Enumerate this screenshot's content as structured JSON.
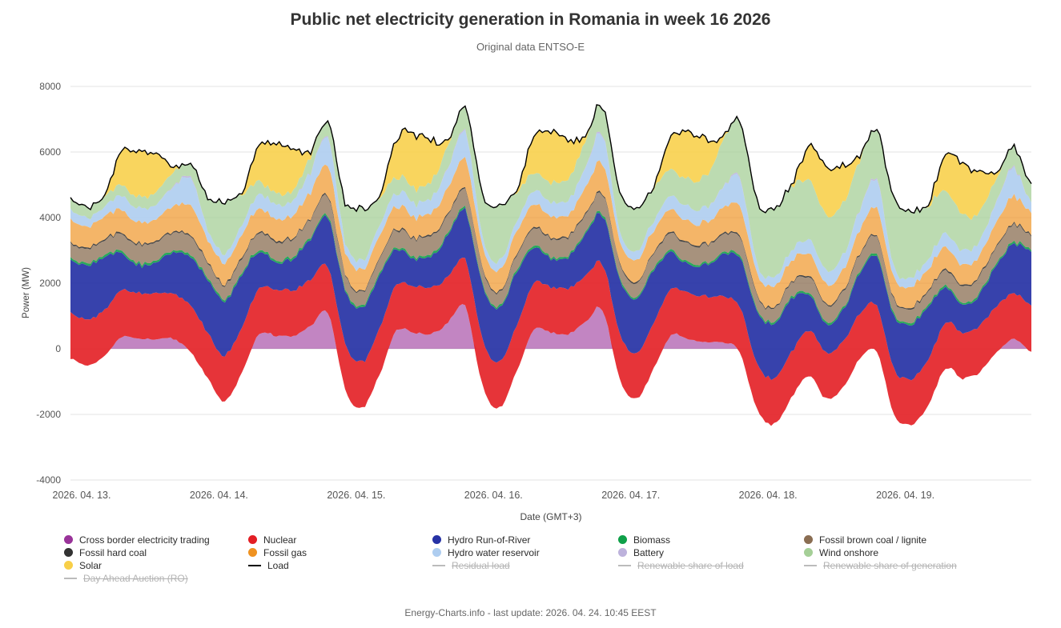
{
  "header": {
    "title": "Public net electricity generation in Romania in week 16 2026",
    "subtitle": "Original data ENTSO-E"
  },
  "footer": {
    "text": "Energy-Charts.info - last update: 2026. 04. 24. 10:45 EEST"
  },
  "chart_data": {
    "type": "area",
    "stacked": true,
    "title": "Public net electricity generation in Romania in week 16 2026",
    "xlabel": "Date (GMT+3)",
    "ylabel": "Power (MW)",
    "ylim": [
      -4000,
      8000
    ],
    "ytick_step": 2000,
    "grid": "horizontal",
    "x_hours_total": 168,
    "x_step_hours": 3,
    "x_tick_labels": [
      "2026. 04. 13.",
      "2026. 04. 14.",
      "2026. 04. 15.",
      "2026. 04. 16.",
      "2026. 04. 17.",
      "2026. 04. 18.",
      "2026. 04. 19."
    ],
    "load_line": {
      "name": "Load",
      "color": "#000000"
    },
    "series": [
      {
        "name": "Cross border electricity trading",
        "slug": "cross-border-electricity-trading",
        "role": "trading",
        "color": "#993399",
        "opacity": 0.6,
        "values": [
          -300,
          -500,
          -200,
          350,
          300,
          300,
          300,
          -100,
          -900,
          -1600,
          -700,
          450,
          400,
          400,
          700,
          1100,
          -1200,
          -1800,
          -800,
          550,
          500,
          450,
          800,
          1300,
          -1100,
          -1800,
          -700,
          550,
          500,
          450,
          800,
          1200,
          -900,
          -1500,
          -600,
          400,
          300,
          200,
          200,
          -100,
          -1800,
          -2300,
          -1500,
          -800,
          -1500,
          -1200,
          -300,
          -100,
          -2000,
          -2300,
          -1700,
          -600,
          -900,
          -700,
          -100,
          300,
          -100
        ]
      },
      {
        "name": "Nuclear",
        "slug": "nuclear",
        "role": "generation",
        "color": "#e31e24",
        "opacity": 0.9,
        "values": [
          1400,
          1400,
          1400,
          1400,
          1400,
          1400,
          1400,
          1400,
          1400,
          1400,
          1400,
          1400,
          1400,
          1400,
          1400,
          1400,
          1400,
          1400,
          1400,
          1400,
          1400,
          1400,
          1400,
          1400,
          1400,
          1400,
          1400,
          1400,
          1400,
          1400,
          1400,
          1400,
          1400,
          1400,
          1400,
          1400,
          1400,
          1400,
          1400,
          1400,
          1400,
          1400,
          1400,
          1400,
          1400,
          1400,
          1400,
          1400,
          1400,
          1400,
          1400,
          1400,
          1400,
          1400,
          1400,
          1400,
          1400
        ]
      },
      {
        "name": "Hydro Run-of-River",
        "slug": "hydro-run-of-river",
        "role": "generation",
        "color": "#2632a5",
        "opacity": 0.92,
        "values": [
          1620,
          1660,
          1620,
          1100,
          850,
          950,
          1250,
          1500,
          1620,
          1660,
          1620,
          1100,
          850,
          950,
          1250,
          1500,
          1620,
          1660,
          1620,
          1100,
          850,
          950,
          1250,
          1500,
          1620,
          1660,
          1620,
          1100,
          850,
          950,
          1250,
          1500,
          1620,
          1660,
          1620,
          1100,
          850,
          950,
          1250,
          1500,
          1620,
          1660,
          1620,
          1100,
          850,
          950,
          1250,
          1500,
          1620,
          1660,
          1620,
          1100,
          850,
          950,
          1250,
          1500,
          1620
        ]
      },
      {
        "name": "Biomass",
        "slug": "biomass",
        "role": "generation",
        "color": "#0fa049",
        "opacity": 0.9,
        "values": [
          60,
          60,
          60,
          60,
          60,
          60,
          60,
          60,
          60,
          60,
          60,
          60,
          60,
          60,
          60,
          60,
          60,
          60,
          60,
          60,
          60,
          60,
          60,
          60,
          60,
          60,
          60,
          60,
          60,
          60,
          60,
          60,
          60,
          60,
          60,
          60,
          60,
          60,
          60,
          60,
          60,
          60,
          60,
          60,
          60,
          60,
          60,
          60,
          60,
          60,
          60,
          60,
          60,
          60,
          60,
          60,
          60
        ]
      },
      {
        "name": "Fossil brown coal / lignite",
        "slug": "fossil-brown-coal-lignite",
        "role": "generation",
        "color": "#8a6d52",
        "opacity": 0.75,
        "values": [
          430,
          420,
          450,
          520,
          560,
          550,
          540,
          560,
          430,
          420,
          450,
          520,
          560,
          550,
          540,
          560,
          430,
          420,
          450,
          520,
          560,
          550,
          540,
          560,
          430,
          420,
          450,
          520,
          560,
          550,
          540,
          560,
          430,
          420,
          450,
          520,
          560,
          550,
          540,
          560,
          420,
          410,
          430,
          470,
          500,
          490,
          500,
          520,
          420,
          410,
          430,
          470,
          500,
          490,
          500,
          520,
          430
        ]
      },
      {
        "name": "Fossil hard coal",
        "slug": "fossil-hard-coal",
        "role": "generation",
        "color": "#333333",
        "opacity": 0.9,
        "values": [
          40,
          40,
          40,
          40,
          40,
          40,
          40,
          40,
          40,
          40,
          40,
          40,
          40,
          40,
          40,
          40,
          40,
          40,
          40,
          40,
          40,
          40,
          40,
          40,
          40,
          40,
          40,
          40,
          40,
          40,
          40,
          40,
          40,
          40,
          40,
          40,
          40,
          40,
          40,
          40,
          40,
          40,
          40,
          40,
          40,
          40,
          40,
          40,
          40,
          40,
          40,
          40,
          40,
          40,
          40,
          40,
          40
        ]
      },
      {
        "name": "Fossil gas",
        "slug": "fossil-gas",
        "role": "generation",
        "color": "#ef9221",
        "opacity": 0.68,
        "values": [
          670,
          650,
          680,
          700,
          640,
          660,
          780,
          900,
          670,
          650,
          680,
          700,
          640,
          660,
          780,
          900,
          670,
          650,
          680,
          700,
          640,
          660,
          780,
          900,
          670,
          650,
          680,
          700,
          640,
          660,
          780,
          900,
          670,
          650,
          680,
          700,
          640,
          660,
          780,
          900,
          650,
          630,
          650,
          660,
          600,
          620,
          720,
          840,
          650,
          630,
          650,
          660,
          600,
          620,
          720,
          840,
          670
        ]
      },
      {
        "name": "Hydro water reservoir",
        "slug": "hydro-water-reservoir",
        "role": "generation",
        "color": "#aecdf0",
        "opacity": 0.9,
        "values": [
          300,
          280,
          300,
          420,
          430,
          450,
          600,
          850,
          300,
          280,
          300,
          420,
          430,
          450,
          600,
          850,
          300,
          280,
          300,
          420,
          430,
          450,
          600,
          850,
          300,
          280,
          300,
          420,
          430,
          450,
          600,
          850,
          300,
          280,
          300,
          420,
          430,
          450,
          600,
          850,
          300,
          280,
          300,
          420,
          430,
          450,
          600,
          850,
          300,
          280,
          300,
          420,
          430,
          450,
          600,
          850,
          300
        ]
      },
      {
        "name": "Battery",
        "slug": "battery",
        "role": "generation",
        "color": "#bdb2dc",
        "opacity": 0.9,
        "values": [
          0,
          0,
          0,
          0,
          0,
          0,
          20,
          40,
          0,
          0,
          0,
          0,
          0,
          0,
          20,
          40,
          0,
          0,
          0,
          0,
          0,
          0,
          20,
          40,
          0,
          0,
          0,
          0,
          0,
          0,
          20,
          40,
          0,
          0,
          0,
          0,
          0,
          0,
          20,
          40,
          0,
          0,
          0,
          0,
          0,
          0,
          20,
          40,
          0,
          0,
          0,
          0,
          0,
          0,
          20,
          40,
          0
        ]
      },
      {
        "name": "Wind onshore",
        "slug": "wind-onshore",
        "role": "generation",
        "color": "#a5cf97",
        "opacity": 0.75,
        "values": [
          350,
          320,
          300,
          320,
          350,
          380,
          420,
          380,
          1000,
          1600,
          900,
          400,
          350,
          300,
          450,
          450,
          1200,
          1600,
          800,
          500,
          450,
          500,
          650,
          700,
          1300,
          1700,
          900,
          550,
          600,
          650,
          800,
          800,
          1200,
          1300,
          1000,
          800,
          850,
          950,
          1400,
          1700,
          1900,
          2100,
          1950,
          1800,
          1700,
          1600,
          1500,
          1500,
          2100,
          2000,
          1600,
          1300,
          1100,
          900,
          700,
          600,
          550
        ]
      },
      {
        "name": "Solar",
        "slug": "solar",
        "role": "generation",
        "color": "#f8cf48",
        "opacity": 0.88,
        "values": [
          0,
          0,
          50,
          1050,
          1400,
          1150,
          150,
          0,
          0,
          0,
          60,
          1100,
          1500,
          1250,
          160,
          0,
          0,
          0,
          60,
          1150,
          1650,
          1280,
          170,
          0,
          0,
          0,
          60,
          1100,
          1550,
          1200,
          160,
          0,
          0,
          0,
          50,
          1000,
          1450,
          1150,
          150,
          0,
          0,
          0,
          50,
          1000,
          1450,
          1150,
          150,
          0,
          0,
          0,
          60,
          1080,
          1550,
          1200,
          160,
          0,
          0
        ]
      }
    ]
  },
  "legend": {
    "items": [
      {
        "label": "Cross border electricity trading",
        "slug": "cross-border-electricity-trading",
        "color": "#993399",
        "marker": "dot",
        "enabled": true
      },
      {
        "label": "Nuclear",
        "slug": "nuclear",
        "color": "#e31e24",
        "marker": "dot",
        "enabled": true
      },
      {
        "label": "Hydro Run-of-River",
        "slug": "hydro-run-of-river",
        "color": "#2632a5",
        "marker": "dot",
        "enabled": true
      },
      {
        "label": "Biomass",
        "slug": "biomass",
        "color": "#0fa049",
        "marker": "dot",
        "enabled": true
      },
      {
        "label": "Fossil brown coal / lignite",
        "slug": "fossil-brown-coal-lignite",
        "color": "#8a6d52",
        "marker": "dot",
        "enabled": true
      },
      {
        "label": "Fossil hard coal",
        "slug": "fossil-hard-coal",
        "color": "#333333",
        "marker": "dot",
        "enabled": true
      },
      {
        "label": "Fossil gas",
        "slug": "fossil-gas",
        "color": "#ef9221",
        "marker": "dot",
        "enabled": true
      },
      {
        "label": "Hydro water reservoir",
        "slug": "hydro-water-reservoir",
        "color": "#aecdf0",
        "marker": "dot",
        "enabled": true
      },
      {
        "label": "Battery",
        "slug": "battery",
        "color": "#bdb2dc",
        "marker": "dot",
        "enabled": true
      },
      {
        "label": "Wind onshore",
        "slug": "wind-onshore",
        "color": "#a5cf97",
        "marker": "dot",
        "enabled": true
      },
      {
        "label": "Solar",
        "slug": "solar",
        "color": "#f8cf48",
        "marker": "dot",
        "enabled": true
      },
      {
        "label": "Load",
        "slug": "load",
        "color": "#000000",
        "marker": "line",
        "enabled": true
      },
      {
        "label": "Residual load",
        "slug": "residual-load",
        "color": "#bbbbbb",
        "marker": "line",
        "enabled": false
      },
      {
        "label": "Renewable share of load",
        "slug": "renewable-share-of-load",
        "color": "#bbbbbb",
        "marker": "line",
        "enabled": false
      },
      {
        "label": "Renewable share of generation",
        "slug": "renewable-share-of-generation",
        "color": "#bbbbbb",
        "marker": "line",
        "enabled": false
      },
      {
        "label": "Day Ahead Auction (RO)",
        "slug": "day-ahead-auction-ro",
        "color": "#bbbbbb",
        "marker": "line",
        "enabled": false
      }
    ]
  }
}
